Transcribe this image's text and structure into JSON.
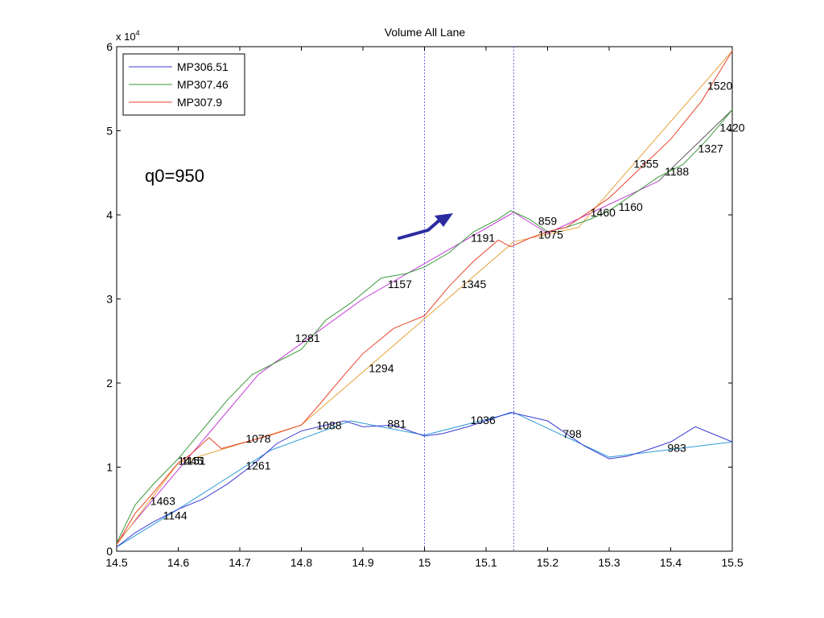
{
  "chart_data": {
    "type": "line",
    "title": "Volume All Lane",
    "xlabel": "",
    "ylabel": "",
    "xlim": [
      14.5,
      15.5
    ],
    "ylim": [
      0,
      6
    ],
    "y_multiplier_label": "x 10",
    "y_multiplier_exponent": "4",
    "xticks": [
      "14.5",
      "14.6",
      "14.7",
      "14.8",
      "14.9",
      "15",
      "15.1",
      "15.2",
      "15.3",
      "15.4",
      "15.5"
    ],
    "yticks": [
      "0",
      "1",
      "2",
      "3",
      "4",
      "5",
      "6"
    ],
    "grid": false,
    "legend_position": "top-left",
    "annotation_text": "q0=950",
    "vertical_lines": [
      15.0,
      15.145
    ],
    "series": [
      {
        "name": "MP306.51",
        "color": "#3b3bd6",
        "x": [
          14.5,
          14.53,
          14.56,
          14.6,
          14.64,
          14.68,
          14.72,
          14.76,
          14.8,
          14.84,
          14.87,
          14.9,
          14.95,
          14.98,
          15.0,
          15.03,
          15.07,
          15.1,
          15.14,
          15.17,
          15.2,
          15.23,
          15.26,
          15.3,
          15.33,
          15.36,
          15.4,
          15.44,
          15.46,
          15.5
        ],
        "y": [
          0.05,
          0.22,
          0.35,
          0.5,
          0.62,
          0.8,
          1.02,
          1.28,
          1.43,
          1.5,
          1.55,
          1.48,
          1.5,
          1.42,
          1.37,
          1.4,
          1.48,
          1.55,
          1.65,
          1.6,
          1.55,
          1.4,
          1.25,
          1.1,
          1.13,
          1.2,
          1.3,
          1.48,
          1.42,
          1.3
        ]
      },
      {
        "name": "MP307.46",
        "color": "#3a9a3a",
        "x": [
          14.5,
          14.53,
          14.56,
          14.6,
          14.64,
          14.68,
          14.72,
          14.76,
          14.8,
          14.84,
          14.88,
          14.93,
          14.97,
          15.0,
          15.04,
          15.08,
          15.12,
          15.14,
          15.17,
          15.2,
          15.23,
          15.27,
          15.3,
          15.34,
          15.38,
          15.42,
          15.46,
          15.5
        ],
        "y": [
          0.1,
          0.55,
          0.8,
          1.1,
          1.45,
          1.8,
          2.1,
          2.25,
          2.4,
          2.75,
          2.95,
          3.25,
          3.3,
          3.38,
          3.55,
          3.8,
          3.95,
          4.05,
          3.95,
          3.8,
          3.85,
          3.95,
          4.05,
          4.25,
          4.45,
          4.6,
          4.9,
          5.25
        ]
      },
      {
        "name": "MP307.9",
        "color": "#e8442a",
        "x": [
          14.5,
          14.53,
          14.56,
          14.6,
          14.62,
          14.65,
          14.67,
          14.7,
          14.75,
          14.8,
          14.83,
          14.87,
          14.9,
          14.95,
          15.0,
          15.04,
          15.08,
          15.12,
          15.14,
          15.17,
          15.2,
          15.23,
          15.27,
          15.3,
          15.35,
          15.4,
          15.45,
          15.5
        ],
        "y": [
          0.08,
          0.45,
          0.7,
          1.05,
          1.15,
          1.35,
          1.22,
          1.28,
          1.38,
          1.5,
          1.75,
          2.1,
          2.35,
          2.65,
          2.8,
          3.15,
          3.45,
          3.7,
          3.62,
          3.72,
          3.8,
          3.85,
          4.05,
          4.2,
          4.55,
          4.9,
          5.35,
          5.95
        ]
      }
    ],
    "fit_segments": [
      {
        "color": "#2a9ad8",
        "x": [
          14.5,
          14.6
        ],
        "y": [
          0.05,
          0.5
        ]
      },
      {
        "color": "#2a9ad8",
        "x": [
          14.6,
          14.75
        ],
        "y": [
          0.5,
          1.2
        ]
      },
      {
        "color": "#2a9ad8",
        "x": [
          14.75,
          14.88
        ],
        "y": [
          1.2,
          1.55
        ]
      },
      {
        "color": "#2a9ad8",
        "x": [
          14.88,
          15.0
        ],
        "y": [
          1.55,
          1.38
        ]
      },
      {
        "color": "#2a9ad8",
        "x": [
          15.0,
          15.145
        ],
        "y": [
          1.38,
          1.65
        ]
      },
      {
        "color": "#2a9ad8",
        "x": [
          15.145,
          15.3
        ],
        "y": [
          1.65,
          1.12
        ]
      },
      {
        "color": "#2a9ad8",
        "x": [
          15.3,
          15.5
        ],
        "y": [
          1.12,
          1.3
        ]
      },
      {
        "color": "#c23bd4",
        "x": [
          14.5,
          14.73
        ],
        "y": [
          0.1,
          2.1
        ]
      },
      {
        "color": "#c23bd4",
        "x": [
          14.73,
          14.9
        ],
        "y": [
          2.1,
          3.0
        ]
      },
      {
        "color": "#c23bd4",
        "x": [
          14.9,
          15.145
        ],
        "y": [
          3.0,
          4.03
        ]
      },
      {
        "color": "#c23bd4",
        "x": [
          15.145,
          15.2
        ],
        "y": [
          4.03,
          3.78
        ]
      },
      {
        "color": "#c23bd4",
        "x": [
          15.2,
          15.38
        ],
        "y": [
          3.78,
          4.4
        ]
      },
      {
        "color": "#555555",
        "x": [
          15.38,
          15.5
        ],
        "y": [
          4.4,
          5.25
        ]
      },
      {
        "color": "#e8a23a",
        "x": [
          14.5,
          14.6
        ],
        "y": [
          0.08,
          1.05
        ]
      },
      {
        "color": "#e8a23a",
        "x": [
          14.6,
          14.8
        ],
        "y": [
          1.05,
          1.5
        ]
      },
      {
        "color": "#e8a23a",
        "x": [
          14.8,
          15.145
        ],
        "y": [
          1.5,
          3.68
        ]
      },
      {
        "color": "#e8a23a",
        "x": [
          15.145,
          15.25
        ],
        "y": [
          3.68,
          3.85
        ]
      },
      {
        "color": "#e8a23a",
        "x": [
          15.25,
          15.5
        ],
        "y": [
          3.85,
          5.95
        ]
      }
    ],
    "data_labels": [
      {
        "text": "1463",
        "x": 14.575,
        "y": 0.55
      },
      {
        "text": "1144",
        "x": 14.595,
        "y": 0.38
      },
      {
        "text": "1445",
        "x": 14.62,
        "y": 1.03
      },
      {
        "text": "1151",
        "x": 14.625,
        "y": 1.03
      },
      {
        "text": "1261",
        "x": 14.73,
        "y": 0.97
      },
      {
        "text": "1078",
        "x": 14.73,
        "y": 1.29
      },
      {
        "text": "1088",
        "x": 14.845,
        "y": 1.45
      },
      {
        "text": "881",
        "x": 14.955,
        "y": 1.47
      },
      {
        "text": "1036",
        "x": 15.095,
        "y": 1.51
      },
      {
        "text": "798",
        "x": 15.24,
        "y": 1.35
      },
      {
        "text": "983",
        "x": 15.41,
        "y": 1.18
      },
      {
        "text": "1281",
        "x": 14.81,
        "y": 2.49
      },
      {
        "text": "1294",
        "x": 14.93,
        "y": 2.13
      },
      {
        "text": "1157",
        "x": 14.96,
        "y": 3.13
      },
      {
        "text": "1345",
        "x": 15.08,
        "y": 3.13
      },
      {
        "text": "1191",
        "x": 15.095,
        "y": 3.68
      },
      {
        "text": "859",
        "x": 15.2,
        "y": 3.88
      },
      {
        "text": "1075",
        "x": 15.205,
        "y": 3.72
      },
      {
        "text": "1460",
        "x": 15.29,
        "y": 3.98
      },
      {
        "text": "1160",
        "x": 15.335,
        "y": 4.05
      },
      {
        "text": "1355",
        "x": 15.36,
        "y": 4.56
      },
      {
        "text": "1188",
        "x": 15.41,
        "y": 4.47
      },
      {
        "text": "1327",
        "x": 15.465,
        "y": 4.74
      },
      {
        "text": "1520",
        "x": 15.48,
        "y": 5.49
      },
      {
        "text": "1420",
        "x": 15.5,
        "y": 4.99
      }
    ]
  }
}
